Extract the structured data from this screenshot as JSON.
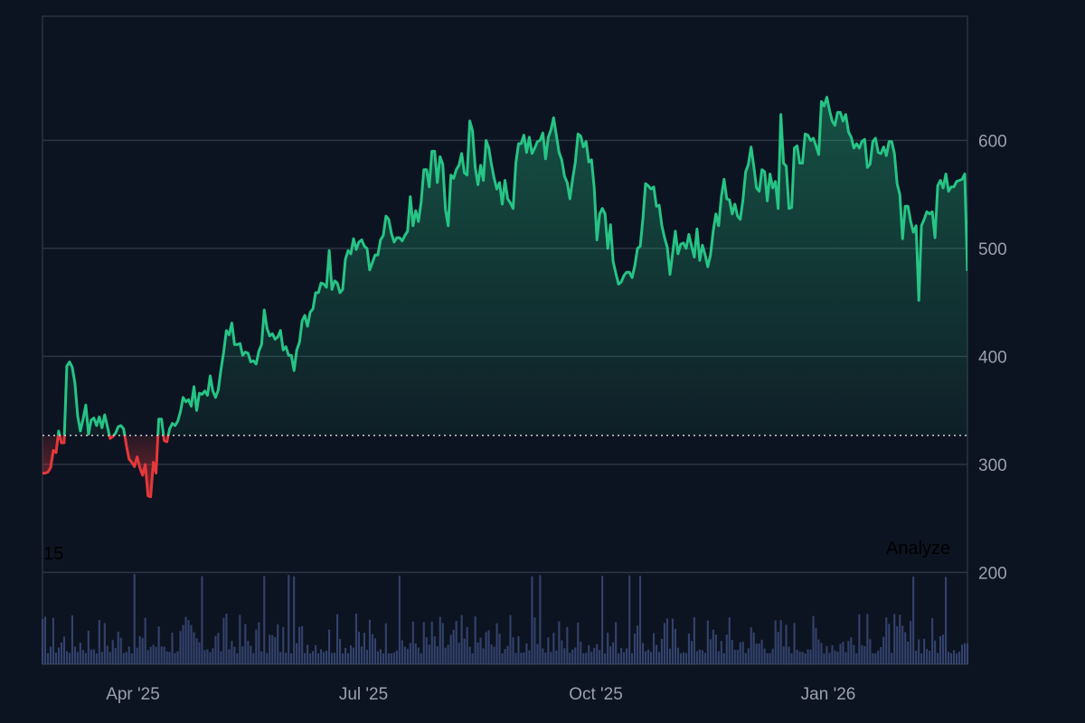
{
  "chart_data": {
    "type": "area",
    "title": "",
    "xlabel": "",
    "ylabel": "",
    "ylim": [
      115,
      715
    ],
    "y_ticks": [
      200,
      300,
      400,
      500,
      600
    ],
    "x_tick_labels": [
      "Apr '25",
      "Jul '25",
      "Oct '25",
      "Jan '26"
    ],
    "baseline": 327,
    "colors": {
      "up": "#26c485",
      "down": "#e5383b",
      "volume": "#3b4a7a",
      "grid": "#2c3544",
      "baseline_line": "#c8ccd4"
    },
    "volume_overlay": {
      "top_label": "15"
    },
    "overlay_button": "Analyze",
    "series": [
      {
        "type": "line",
        "values": [
          292,
          292,
          293,
          297,
          313,
          311,
          331,
          320,
          320,
          391,
          395,
          390,
          375,
          345,
          331,
          342,
          355,
          328,
          341,
          343,
          336,
          344,
          334,
          346,
          335,
          324,
          326,
          329,
          335,
          336,
          333,
          318,
          305,
          302,
          298,
          307,
          297,
          290,
          300,
          271,
          270,
          302,
          292,
          342,
          342,
          322,
          321,
          333,
          338,
          336,
          340,
          349,
          362,
          358,
          360,
          354,
          372,
          350,
          366,
          365,
          368,
          364,
          382,
          368,
          362,
          369,
          388,
          404,
          424,
          420,
          431,
          411,
          411,
          412,
          401,
          404,
          403,
          395,
          396,
          393,
          405,
          411,
          443,
          426,
          419,
          421,
          416,
          418,
          424,
          406,
          409,
          401,
          401,
          387,
          406,
          413,
          433,
          438,
          428,
          441,
          444,
          459,
          459,
          468,
          467,
          464,
          498,
          462,
          470,
          468,
          459,
          462,
          490,
          498,
          495,
          509,
          499,
          506,
          508,
          502,
          500,
          480,
          487,
          494,
          494,
          508,
          512,
          530,
          527,
          514,
          506,
          510,
          510,
          507,
          512,
          516,
          548,
          521,
          535,
          525,
          543,
          573,
          573,
          557,
          590,
          590,
          561,
          585,
          578,
          536,
          521,
          568,
          565,
          573,
          577,
          588,
          570,
          568,
          618,
          609,
          575,
          559,
          577,
          563,
          600,
          593,
          578,
          565,
          555,
          561,
          541,
          563,
          546,
          542,
          537,
          579,
          597,
          597,
          605,
          589,
          603,
          588,
          593,
          599,
          600,
          607,
          583,
          603,
          610,
          621,
          605,
          589,
          582,
          567,
          561,
          546,
          564,
          580,
          606,
          604,
          594,
          599,
          580,
          582,
          556,
          508,
          532,
          537,
          532,
          500,
          522,
          488,
          477,
          467,
          469,
          475,
          478,
          478,
          473,
          484,
          500,
          502,
          528,
          560,
          558,
          555,
          557,
          539,
          540,
          521,
          510,
          501,
          476,
          496,
          516,
          495,
          504,
          505,
          500,
          513,
          502,
          492,
          518,
          489,
          503,
          494,
          483,
          494,
          516,
          532,
          521,
          548,
          564,
          546,
          545,
          532,
          541,
          530,
          527,
          545,
          571,
          578,
          594,
          576,
          556,
          553,
          573,
          571,
          544,
          569,
          556,
          562,
          537,
          624,
          579,
          576,
          537,
          538,
          593,
          595,
          579,
          579,
          606,
          605,
          600,
          602,
          595,
          587,
          636,
          632,
          640,
          628,
          618,
          614,
          626,
          626,
          618,
          624,
          608,
          603,
          593,
          597,
          593,
          599,
          601,
          575,
          578,
          599,
          602,
          589,
          588,
          594,
          586,
          599,
          599,
          588,
          560,
          550,
          509,
          539,
          539,
          525,
          515,
          521,
          452,
          521,
          527,
          534,
          532,
          534,
          510,
          558,
          563,
          556,
          569,
          553,
          557,
          557,
          562,
          563,
          564,
          569,
          479
        ]
      }
    ]
  }
}
